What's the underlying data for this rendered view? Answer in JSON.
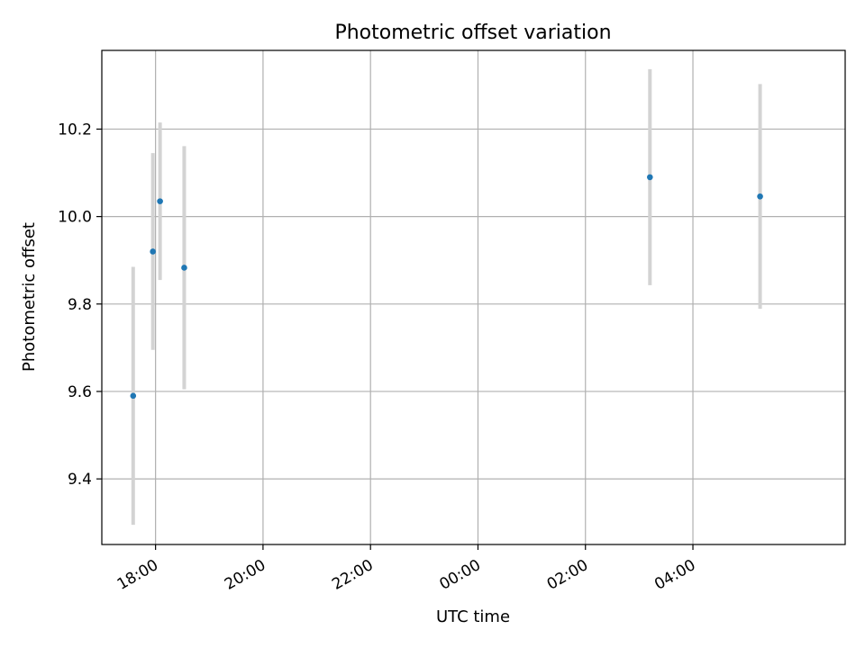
{
  "chart_data": {
    "type": "scatter",
    "title": "Photometric offset variation",
    "xlabel": "UTC time",
    "ylabel": "Photometric offset",
    "grid": true,
    "error_bars": true,
    "x_ticks": [
      "18:00",
      "20:00",
      "22:00",
      "00:00",
      "02:00",
      "04:00"
    ],
    "y_ticks": [
      "9.4",
      "9.6",
      "9.8",
      "10.0",
      "10.2"
    ],
    "xlim": [
      "17:00",
      "06:50"
    ],
    "ylim": [
      9.25,
      10.38
    ],
    "series": [
      {
        "points": [
          {
            "x": "17:35",
            "y": 9.59,
            "err": 0.295
          },
          {
            "x": "17:57",
            "y": 9.92,
            "err": 0.225
          },
          {
            "x": "18:05",
            "y": 10.035,
            "err": 0.18
          },
          {
            "x": "18:32",
            "y": 9.883,
            "err": 0.278
          },
          {
            "x": "03:12",
            "y": 10.09,
            "err": 0.247
          },
          {
            "x": "05:15",
            "y": 10.046,
            "err": 0.257
          }
        ]
      }
    ],
    "colors": {
      "point": "#1f77b4",
      "errorbar": "#d3d3d3",
      "grid": "#b0b0b0"
    }
  }
}
